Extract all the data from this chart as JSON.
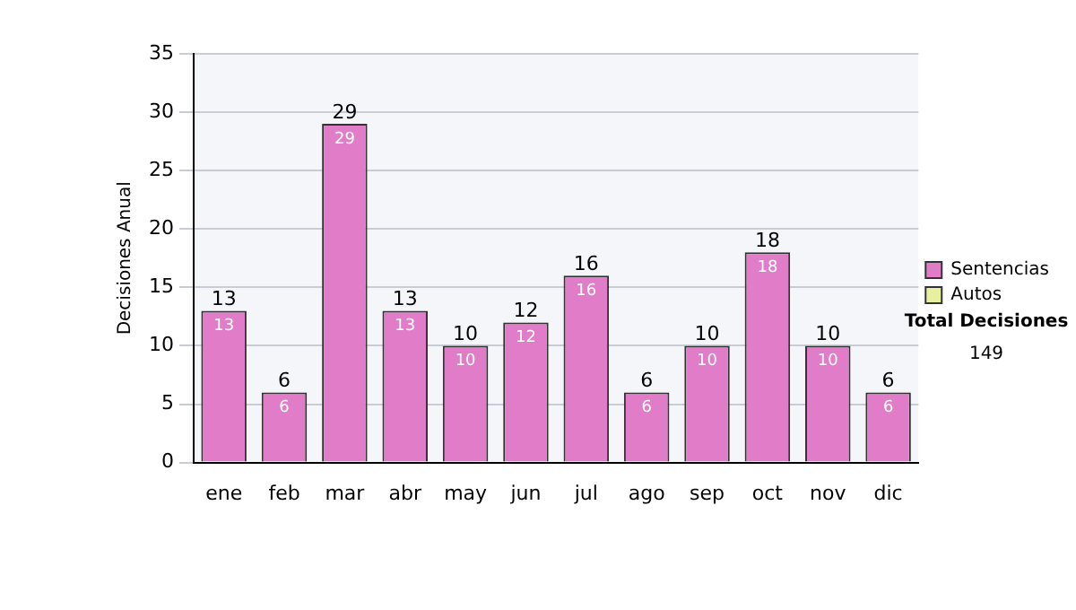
{
  "chart_data": {
    "type": "bar",
    "stacked": true,
    "ylabel": "Decisiones Anual",
    "categories": [
      "ene",
      "feb",
      "mar",
      "abr",
      "may",
      "jun",
      "jul",
      "ago",
      "sep",
      "oct",
      "nov",
      "dic"
    ],
    "series": [
      {
        "name": "Sentencias",
        "color": "#e07cc8",
        "values": [
          13,
          6,
          29,
          13,
          10,
          12,
          16,
          6,
          10,
          18,
          10,
          6
        ],
        "value_labels": [
          "13",
          "6",
          "29",
          "13",
          "10",
          "12",
          "16",
          "6",
          "10",
          "18",
          "10",
          "6"
        ]
      },
      {
        "name": "Autos",
        "color": "#e8f0a0",
        "values": [
          0,
          0,
          0,
          0,
          0,
          0,
          0,
          0,
          0,
          0,
          0,
          0
        ]
      }
    ],
    "totals": [
      "13",
      "6",
      "29",
      "13",
      "10",
      "12",
      "16",
      "6",
      "10",
      "18",
      "10",
      "6"
    ],
    "ylim": [
      0,
      35
    ],
    "yticks": [
      0,
      5,
      10,
      15,
      20,
      25,
      30,
      35
    ],
    "grid": "y",
    "legend": "right",
    "annotations": [
      "Total Decisiones",
      "149"
    ]
  }
}
